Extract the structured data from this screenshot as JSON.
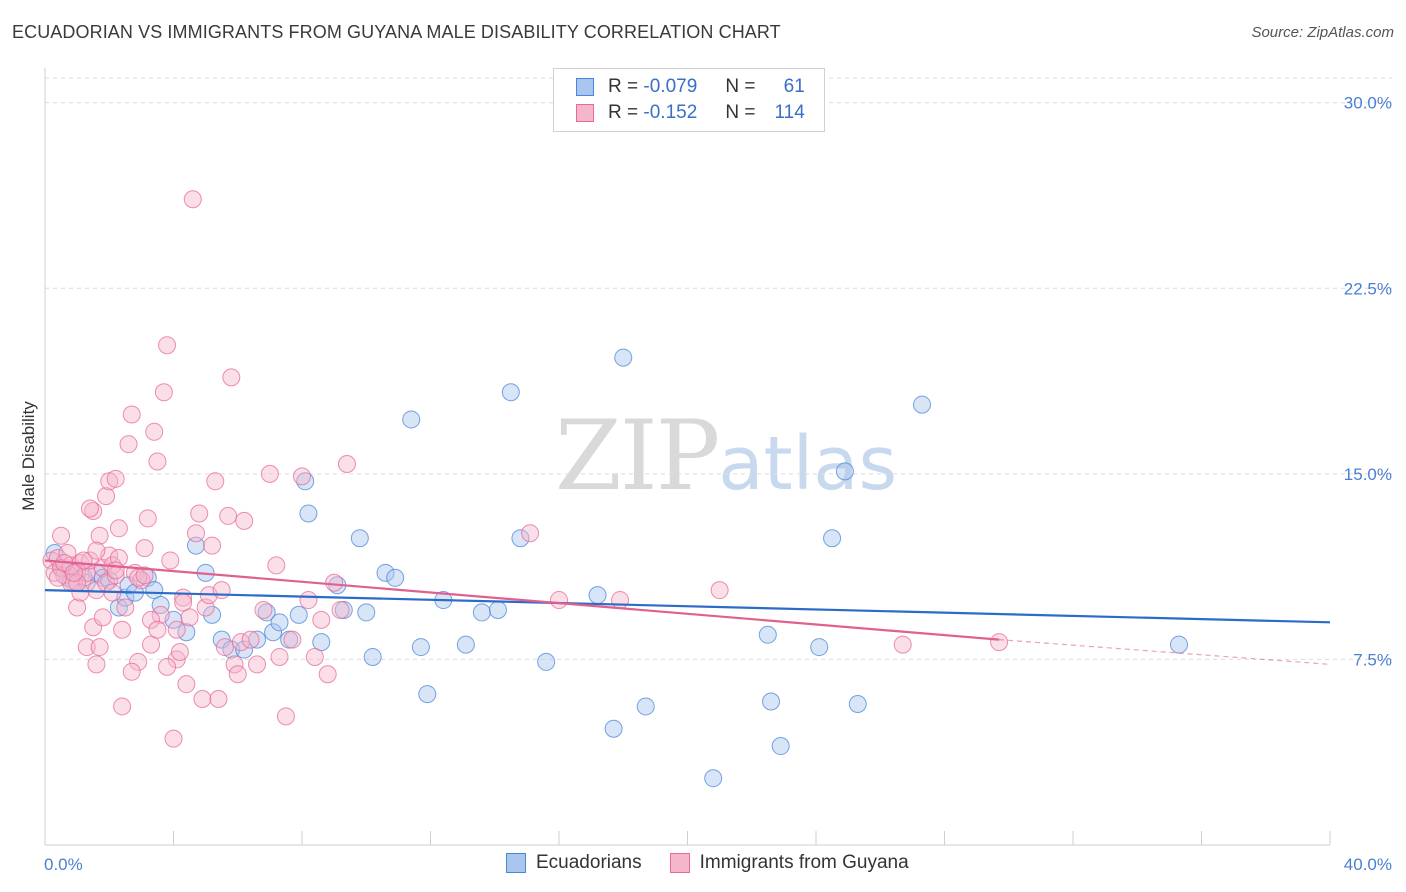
{
  "title": "ECUADORIAN VS IMMIGRANTS FROM GUYANA MALE DISABILITY CORRELATION CHART",
  "source": "Source: ZipAtlas.com",
  "legend": {
    "row1": {
      "r_label": "R =",
      "r_value": "-0.079",
      "n_label": "N =",
      "n_value": "61"
    },
    "row2": {
      "r_label": "R =",
      "r_value": "-0.152",
      "n_label": "N =",
      "n_value": "114"
    }
  },
  "bottom_legend": {
    "series1": "Ecuadorians",
    "series2": "Immigrants from Guyana"
  },
  "watermark": {
    "zip": "ZIP",
    "atlas": "atlas"
  },
  "colors": {
    "blue": "#4a86d8",
    "blue_fill": "#a9c6ee",
    "pink": "#e86a9a",
    "pink_fill": "#f5b6cc",
    "blue_line": "#2a6cc8",
    "pink_line": "#e0608e"
  },
  "chart_data": {
    "type": "scatter",
    "title": "ECUADORIAN VS IMMIGRANTS FROM GUYANA MALE DISABILITY CORRELATION CHART",
    "xlabel": "",
    "ylabel": "Male Disability",
    "xlim": [
      0,
      40
    ],
    "ylim": [
      0,
      31
    ],
    "x_tick_labels": {
      "min": "0.0%",
      "max": "40.0%"
    },
    "y_ticks": [
      7.5,
      15.0,
      22.5,
      30.0
    ],
    "y_tick_labels": [
      "7.5%",
      "15.0%",
      "22.5%",
      "30.0%"
    ],
    "series": [
      {
        "name": "Ecuadorians",
        "color": "#4a86d8",
        "trend": {
          "x0": 0,
          "y0": 10.3,
          "x1": 40,
          "y1": 9.0
        },
        "points": [
          [
            0.3,
            11.8
          ],
          [
            0.5,
            11.2
          ],
          [
            0.7,
            10.8
          ],
          [
            1.0,
            11.0
          ],
          [
            1.3,
            10.6
          ],
          [
            1.6,
            11.0
          ],
          [
            1.8,
            10.8
          ],
          [
            2.0,
            10.7
          ],
          [
            2.3,
            9.6
          ],
          [
            2.5,
            10.0
          ],
          [
            2.6,
            10.5
          ],
          [
            2.8,
            10.2
          ],
          [
            3.2,
            10.8
          ],
          [
            3.4,
            10.3
          ],
          [
            3.6,
            9.7
          ],
          [
            4.0,
            9.1
          ],
          [
            4.4,
            8.6
          ],
          [
            4.7,
            12.1
          ],
          [
            5.0,
            11.0
          ],
          [
            5.2,
            9.3
          ],
          [
            5.5,
            8.3
          ],
          [
            5.8,
            7.9
          ],
          [
            6.2,
            7.9
          ],
          [
            6.6,
            8.3
          ],
          [
            6.9,
            9.4
          ],
          [
            7.1,
            8.6
          ],
          [
            7.3,
            9.0
          ],
          [
            7.6,
            8.3
          ],
          [
            7.9,
            9.3
          ],
          [
            8.1,
            14.7
          ],
          [
            8.2,
            13.4
          ],
          [
            8.6,
            8.2
          ],
          [
            9.1,
            10.5
          ],
          [
            9.3,
            9.5
          ],
          [
            9.8,
            12.4
          ],
          [
            10.0,
            9.4
          ],
          [
            10.2,
            7.6
          ],
          [
            10.6,
            11.0
          ],
          [
            10.9,
            10.8
          ],
          [
            11.4,
            17.2
          ],
          [
            11.7,
            8.0
          ],
          [
            11.9,
            6.1
          ],
          [
            12.4,
            9.9
          ],
          [
            13.1,
            8.1
          ],
          [
            13.6,
            9.4
          ],
          [
            14.1,
            9.5
          ],
          [
            14.5,
            18.3
          ],
          [
            14.8,
            12.4
          ],
          [
            15.6,
            7.4
          ],
          [
            17.2,
            10.1
          ],
          [
            17.7,
            4.7
          ],
          [
            18.0,
            19.7
          ],
          [
            18.7,
            5.6
          ],
          [
            20.8,
            2.7
          ],
          [
            22.5,
            8.5
          ],
          [
            22.6,
            5.8
          ],
          [
            22.9,
            4.0
          ],
          [
            24.1,
            8.0
          ],
          [
            24.5,
            12.4
          ],
          [
            24.9,
            15.1
          ],
          [
            27.3,
            17.8
          ],
          [
            25.3,
            5.7
          ],
          [
            35.3,
            8.1
          ]
        ]
      },
      {
        "name": "Immigrants from Guyana",
        "color": "#e86a9a",
        "trend": {
          "x0": 0,
          "y0": 11.5,
          "x1": 29.7,
          "y1": 8.3,
          "dash_x1": 40,
          "dash_y1": 7.3
        },
        "points": [
          [
            0.2,
            11.5
          ],
          [
            0.3,
            11.0
          ],
          [
            0.4,
            11.6
          ],
          [
            0.5,
            11.2
          ],
          [
            0.6,
            10.9
          ],
          [
            0.7,
            11.8
          ],
          [
            0.8,
            11.3
          ],
          [
            0.9,
            10.6
          ],
          [
            1.0,
            11.1
          ],
          [
            1.1,
            11.4
          ],
          [
            1.2,
            10.8
          ],
          [
            1.3,
            11.0
          ],
          [
            1.4,
            11.5
          ],
          [
            1.5,
            13.5
          ],
          [
            1.6,
            10.3
          ],
          [
            1.7,
            12.5
          ],
          [
            1.8,
            11.2
          ],
          [
            1.9,
            10.6
          ],
          [
            2.0,
            11.7
          ],
          [
            2.1,
            11.3
          ],
          [
            2.2,
            10.9
          ],
          [
            2.3,
            11.6
          ],
          [
            2.4,
            8.7
          ],
          [
            2.5,
            9.6
          ],
          [
            0.5,
            12.5
          ],
          [
            0.8,
            10.6
          ],
          [
            1.0,
            9.6
          ],
          [
            1.2,
            11.5
          ],
          [
            1.3,
            8.0
          ],
          [
            1.5,
            8.8
          ],
          [
            1.6,
            7.3
          ],
          [
            1.8,
            9.2
          ],
          [
            1.9,
            14.1
          ],
          [
            2.0,
            14.7
          ],
          [
            2.2,
            14.8
          ],
          [
            2.3,
            12.8
          ],
          [
            2.4,
            5.6
          ],
          [
            2.6,
            16.2
          ],
          [
            2.7,
            17.4
          ],
          [
            2.8,
            11.0
          ],
          [
            2.9,
            7.4
          ],
          [
            3.0,
            10.7
          ],
          [
            3.1,
            12.0
          ],
          [
            3.2,
            13.2
          ],
          [
            3.3,
            8.1
          ],
          [
            3.4,
            16.7
          ],
          [
            3.5,
            15.5
          ],
          [
            3.6,
            9.3
          ],
          [
            3.7,
            18.3
          ],
          [
            3.8,
            20.2
          ],
          [
            3.9,
            11.5
          ],
          [
            4.0,
            4.3
          ],
          [
            4.1,
            7.5
          ],
          [
            4.2,
            7.8
          ],
          [
            4.3,
            10.0
          ],
          [
            4.4,
            6.5
          ],
          [
            4.5,
            9.2
          ],
          [
            4.6,
            26.1
          ],
          [
            4.7,
            12.6
          ],
          [
            4.8,
            13.4
          ],
          [
            4.9,
            5.9
          ],
          [
            5.0,
            9.6
          ],
          [
            5.1,
            10.1
          ],
          [
            5.2,
            12.1
          ],
          [
            5.3,
            14.7
          ],
          [
            5.4,
            5.9
          ],
          [
            5.5,
            10.3
          ],
          [
            5.6,
            8.0
          ],
          [
            5.7,
            13.3
          ],
          [
            5.8,
            18.9
          ],
          [
            5.9,
            7.3
          ],
          [
            6.0,
            6.9
          ],
          [
            6.1,
            8.2
          ],
          [
            6.2,
            13.1
          ],
          [
            6.4,
            8.3
          ],
          [
            6.6,
            7.3
          ],
          [
            6.8,
            9.5
          ],
          [
            7.0,
            15.0
          ],
          [
            7.2,
            11.3
          ],
          [
            7.3,
            7.6
          ],
          [
            7.5,
            5.2
          ],
          [
            7.7,
            8.3
          ],
          [
            8.0,
            14.9
          ],
          [
            8.2,
            9.9
          ],
          [
            8.4,
            7.6
          ],
          [
            8.6,
            9.1
          ],
          [
            8.8,
            6.9
          ],
          [
            9.0,
            10.6
          ],
          [
            9.2,
            9.5
          ],
          [
            9.4,
            15.4
          ],
          [
            3.3,
            9.1
          ],
          [
            3.5,
            8.7
          ],
          [
            2.1,
            10.2
          ],
          [
            1.1,
            10.2
          ],
          [
            0.4,
            10.8
          ],
          [
            0.6,
            11.4
          ],
          [
            1.7,
            8.0
          ],
          [
            2.7,
            7.0
          ],
          [
            3.8,
            7.2
          ],
          [
            4.3,
            9.8
          ],
          [
            1.4,
            13.6
          ],
          [
            1.0,
            10.6
          ],
          [
            2.9,
            10.8
          ],
          [
            15.1,
            12.6
          ],
          [
            16.0,
            9.9
          ],
          [
            17.9,
            9.9
          ],
          [
            21.0,
            10.3
          ],
          [
            26.7,
            8.1
          ],
          [
            29.7,
            8.2
          ],
          [
            0.9,
            11.0
          ],
          [
            1.6,
            11.9
          ],
          [
            2.2,
            11.1
          ],
          [
            3.1,
            10.9
          ],
          [
            4.1,
            8.7
          ]
        ]
      }
    ]
  }
}
